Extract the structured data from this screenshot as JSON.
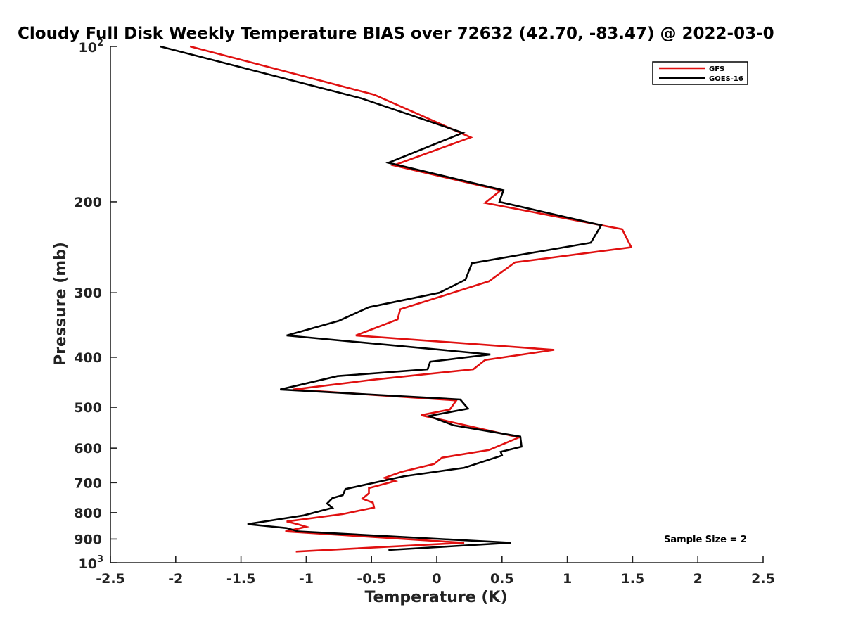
{
  "chart_data": {
    "type": "line",
    "title": "Cloudy Full Disk Weekly Temperature BIAS over 72632 (42.70, -83.47) @ 2022-03-0",
    "xlabel": "Temperature (K)",
    "ylabel": "Pressure (mb)",
    "xlim": [
      -2.5,
      2.5
    ],
    "ylim": [
      100,
      1000
    ],
    "yscale": "log",
    "y_reversed": true,
    "xticks": [
      {
        "v": -2.5,
        "label": "-2.5"
      },
      {
        "v": -2,
        "label": "-2"
      },
      {
        "v": -1.5,
        "label": "-1.5"
      },
      {
        "v": -1,
        "label": "-1"
      },
      {
        "v": -0.5,
        "label": "-0.5"
      },
      {
        "v": 0,
        "label": "0"
      },
      {
        "v": 0.5,
        "label": "0.5"
      },
      {
        "v": 1,
        "label": "1"
      },
      {
        "v": 1.5,
        "label": "1.5"
      },
      {
        "v": 2,
        "label": "2"
      },
      {
        "v": 2.5,
        "label": "2.5"
      }
    ],
    "yticks": [
      {
        "v": 100,
        "base": "10",
        "exp": "2"
      },
      {
        "v": 200,
        "label": "200"
      },
      {
        "v": 300,
        "label": "300"
      },
      {
        "v": 400,
        "label": "400"
      },
      {
        "v": 500,
        "label": "500"
      },
      {
        "v": 600,
        "label": "600"
      },
      {
        "v": 700,
        "label": "700"
      },
      {
        "v": 800,
        "label": "800"
      },
      {
        "v": 900,
        "label": "900"
      },
      {
        "v": 1000,
        "base": "10",
        "exp": "3"
      }
    ],
    "grid": false,
    "legend_position": "top-right",
    "annotation": "Sample Size = 2",
    "series": [
      {
        "name": "GFS",
        "color": "#e01010",
        "points": [
          [
            -1.89,
            100
          ],
          [
            -0.48,
            124
          ],
          [
            0.26,
            150
          ],
          [
            -0.33,
            170
          ],
          [
            0.49,
            190
          ],
          [
            0.37,
            201
          ],
          [
            1.42,
            226
          ],
          [
            1.49,
            245
          ],
          [
            0.6,
            262
          ],
          [
            0.4,
            285
          ],
          [
            -0.28,
            323
          ],
          [
            -0.3,
            338
          ],
          [
            -0.62,
            363
          ],
          [
            0.9,
            387
          ],
          [
            0.37,
            405
          ],
          [
            0.28,
            422
          ],
          [
            -0.48,
            442
          ],
          [
            -1.1,
            462
          ],
          [
            0.15,
            485
          ],
          [
            0.1,
            505
          ],
          [
            -0.12,
            518
          ],
          [
            0.63,
            572
          ],
          [
            0.4,
            605
          ],
          [
            0.04,
            626
          ],
          [
            -0.02,
            644
          ],
          [
            -0.27,
            667
          ],
          [
            -0.4,
            685
          ],
          [
            -0.32,
            695
          ],
          [
            -0.52,
            717
          ],
          [
            -0.52,
            734
          ],
          [
            -0.57,
            752
          ],
          [
            -0.49,
            765
          ],
          [
            -0.48,
            782
          ],
          [
            -0.72,
            805
          ],
          [
            -1.15,
            832
          ],
          [
            -1.06,
            843
          ],
          [
            -1.0,
            852
          ],
          [
            -1.16,
            870
          ],
          [
            0.21,
            915
          ],
          [
            -1.08,
            952
          ]
        ]
      },
      {
        "name": "GOES-16",
        "color": "#000000",
        "points": [
          [
            -2.12,
            100
          ],
          [
            -0.58,
            126
          ],
          [
            0.2,
            147
          ],
          [
            -0.37,
            168
          ],
          [
            0.51,
            190
          ],
          [
            0.48,
            200
          ],
          [
            1.26,
            222
          ],
          [
            1.18,
            240
          ],
          [
            0.27,
            263
          ],
          [
            0.22,
            283
          ],
          [
            0.02,
            300
          ],
          [
            -0.52,
            320
          ],
          [
            -0.75,
            340
          ],
          [
            -1.15,
            363
          ],
          [
            0.41,
            395
          ],
          [
            -0.05,
            408
          ],
          [
            -0.07,
            422
          ],
          [
            -0.76,
            435
          ],
          [
            -1.2,
            462
          ],
          [
            0.18,
            483
          ],
          [
            0.24,
            503
          ],
          [
            -0.06,
            520
          ],
          [
            0.13,
            542
          ],
          [
            0.64,
            570
          ],
          [
            0.65,
            596
          ],
          [
            0.49,
            610
          ],
          [
            0.5,
            620
          ],
          [
            0.21,
            655
          ],
          [
            -0.25,
            680
          ],
          [
            -0.7,
            720
          ],
          [
            -0.72,
            740
          ],
          [
            -0.8,
            750
          ],
          [
            -0.84,
            768
          ],
          [
            -0.8,
            783
          ],
          [
            -1.02,
            810
          ],
          [
            -1.45,
            842
          ],
          [
            -1.15,
            857
          ],
          [
            -1.06,
            870
          ],
          [
            0.57,
            915
          ],
          [
            -0.37,
            945
          ]
        ]
      }
    ]
  }
}
